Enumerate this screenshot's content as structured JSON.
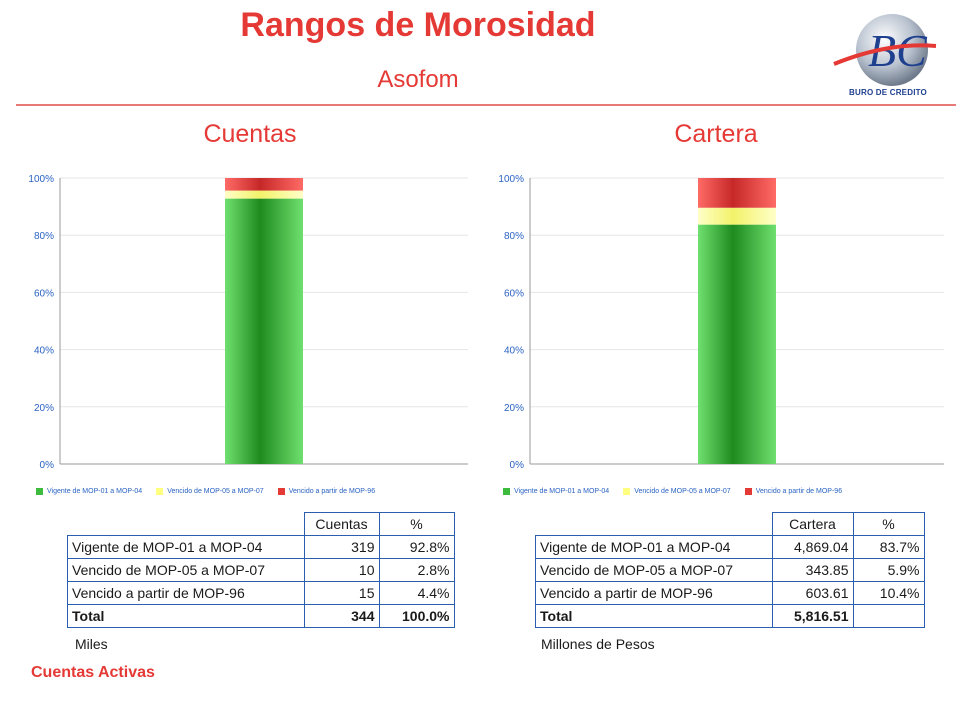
{
  "header": {
    "title": "Rangos de Morosidad",
    "subtitle": "Asofom",
    "logo_text": "BURO DE CREDITO"
  },
  "colors": {
    "accent": "#e53935",
    "table_border": "#2b5fad",
    "vigente": "#3dbb3d",
    "vencido_05_07": "#ffff99",
    "vencido_96": "#e53935"
  },
  "legend": {
    "vigente": "Vigente de MOP-01 a MOP-04",
    "vencido_05_07": "Vencido de MOP-05 a MOP-07",
    "vencido_96": "Vencido a partir de MOP-96"
  },
  "panels": {
    "cuentas": {
      "title": "Cuentas",
      "table": {
        "col1": "Cuentas",
        "col2": "%",
        "rows": [
          {
            "label": "Vigente de MOP-01 a MOP-04",
            "value": "319",
            "pct": "92.8%"
          },
          {
            "label": "Vencido de MOP-05 a MOP-07",
            "value": "10",
            "pct": "2.8%"
          },
          {
            "label": "Vencido a partir de MOP-96",
            "value": "15",
            "pct": "4.4%"
          }
        ],
        "total": {
          "label": "Total",
          "value": "344",
          "pct": "100.0%"
        }
      },
      "note": "Miles"
    },
    "cartera": {
      "title": "Cartera",
      "table": {
        "col1": "Cartera",
        "col2": "%",
        "rows": [
          {
            "label": "Vigente de MOP-01 a MOP-04",
            "value": "4,869.04",
            "pct": "83.7%"
          },
          {
            "label": "Vencido de MOP-05 a MOP-07",
            "value": "343.85",
            "pct": "5.9%"
          },
          {
            "label": "Vencido a partir de MOP-96",
            "value": "603.61",
            "pct": "10.4%"
          }
        ],
        "total": {
          "label": "Total",
          "value": "5,816.51",
          "pct": ""
        }
      },
      "note": "Millones de Pesos"
    }
  },
  "footer": "Cuentas Activas",
  "chart_data": [
    {
      "type": "bar",
      "stacked": true,
      "title": "Cuentas",
      "ylim": [
        0,
        100
      ],
      "yticks": [
        "0%",
        "20%",
        "40%",
        "60%",
        "80%",
        "100%"
      ],
      "grid": true,
      "legend_position": "bottom",
      "series": [
        {
          "name": "Vigente de MOP-01 a MOP-04",
          "values": [
            92.8
          ]
        },
        {
          "name": "Vencido de MOP-05 a MOP-07",
          "values": [
            2.8
          ]
        },
        {
          "name": "Vencido a partir de MOP-96",
          "values": [
            4.4
          ]
        }
      ]
    },
    {
      "type": "bar",
      "stacked": true,
      "title": "Cartera",
      "ylim": [
        0,
        100
      ],
      "yticks": [
        "0%",
        "20%",
        "40%",
        "60%",
        "80%",
        "100%"
      ],
      "grid": true,
      "legend_position": "bottom",
      "series": [
        {
          "name": "Vigente de MOP-01 a MOP-04",
          "values": [
            83.7
          ]
        },
        {
          "name": "Vencido de MOP-05 a MOP-07",
          "values": [
            5.9
          ]
        },
        {
          "name": "Vencido a partir de MOP-96",
          "values": [
            10.4
          ]
        }
      ]
    }
  ]
}
